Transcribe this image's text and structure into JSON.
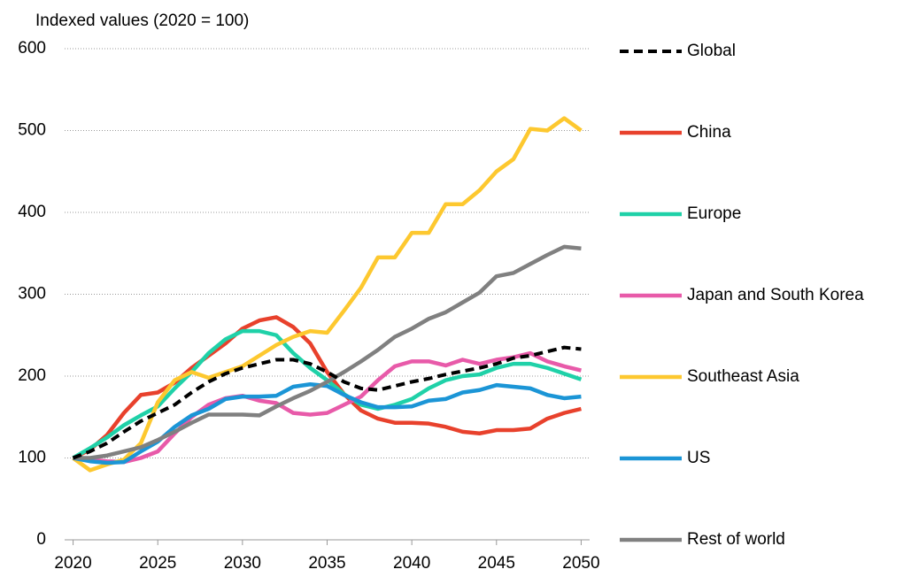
{
  "chart_data": {
    "type": "line",
    "title": "Indexed values (2020 = 100)",
    "x": [
      2020,
      2021,
      2022,
      2023,
      2024,
      2025,
      2026,
      2027,
      2028,
      2029,
      2030,
      2031,
      2032,
      2033,
      2034,
      2035,
      2036,
      2037,
      2038,
      2039,
      2040,
      2041,
      2042,
      2043,
      2044,
      2045,
      2046,
      2047,
      2048,
      2049,
      2050
    ],
    "series": [
      {
        "name": "China",
        "color": "#e8412c",
        "values": [
          100,
          110,
          128,
          155,
          177,
          180,
          192,
          210,
          225,
          240,
          258,
          268,
          272,
          260,
          240,
          205,
          178,
          158,
          148,
          143,
          143,
          142,
          138,
          132,
          130,
          134,
          134,
          136,
          148,
          155,
          160
        ]
      },
      {
        "name": "Europe",
        "color": "#1fd1a8",
        "values": [
          100,
          112,
          125,
          140,
          152,
          163,
          185,
          205,
          228,
          245,
          255,
          255,
          250,
          228,
          210,
          195,
          178,
          165,
          160,
          165,
          172,
          185,
          195,
          200,
          202,
          210,
          215,
          215,
          210,
          203,
          196
        ]
      },
      {
        "name": "Japan and South Korea",
        "color": "#e85aa9",
        "values": [
          100,
          98,
          96,
          95,
          100,
          108,
          130,
          150,
          165,
          173,
          176,
          170,
          167,
          155,
          153,
          155,
          165,
          175,
          195,
          212,
          218,
          218,
          213,
          220,
          215,
          220,
          223,
          228,
          218,
          212,
          207
        ]
      },
      {
        "name": "Southeast Asia",
        "color": "#fdc82f",
        "values": [
          100,
          85,
          92,
          98,
          118,
          168,
          195,
          205,
          198,
          205,
          212,
          225,
          238,
          248,
          255,
          253,
          280,
          308,
          345,
          345,
          375,
          375,
          410,
          410,
          427,
          450,
          465,
          502,
          500,
          515,
          500
        ]
      },
      {
        "name": "US",
        "color": "#1b95d6",
        "values": [
          100,
          96,
          94,
          95,
          108,
          120,
          138,
          152,
          160,
          172,
          175,
          175,
          176,
          187,
          190,
          188,
          177,
          168,
          162,
          162,
          163,
          170,
          172,
          180,
          183,
          189,
          187,
          185,
          177,
          173,
          175
        ]
      },
      {
        "name": "Rest of world",
        "color": "#808080",
        "values": [
          100,
          100,
          103,
          108,
          113,
          122,
          132,
          143,
          153,
          153,
          153,
          152,
          163,
          173,
          182,
          193,
          205,
          218,
          232,
          248,
          258,
          270,
          278,
          290,
          302,
          322,
          326,
          337,
          348,
          358,
          356
        ]
      },
      {
        "name": "Global",
        "color": "#000000",
        "dashed": true,
        "values": [
          100,
          108,
          118,
          132,
          145,
          155,
          165,
          180,
          193,
          203,
          210,
          215,
          220,
          220,
          215,
          205,
          193,
          185,
          183,
          188,
          193,
          197,
          202,
          206,
          210,
          215,
          222,
          225,
          230,
          235,
          233
        ]
      }
    ],
    "legend_order": [
      "Global",
      "China",
      "Europe",
      "Japan and South Korea",
      "Southeast Asia",
      "US",
      "Rest of world"
    ],
    "xlim": [
      2019.5,
      2050.5
    ],
    "xticks": [
      2020,
      2025,
      2030,
      2035,
      2040,
      2045,
      2050
    ],
    "ylim": [
      0,
      600
    ],
    "yticks": [
      0,
      100,
      200,
      300,
      400,
      500,
      600
    ],
    "grid": true,
    "legend": "right"
  }
}
